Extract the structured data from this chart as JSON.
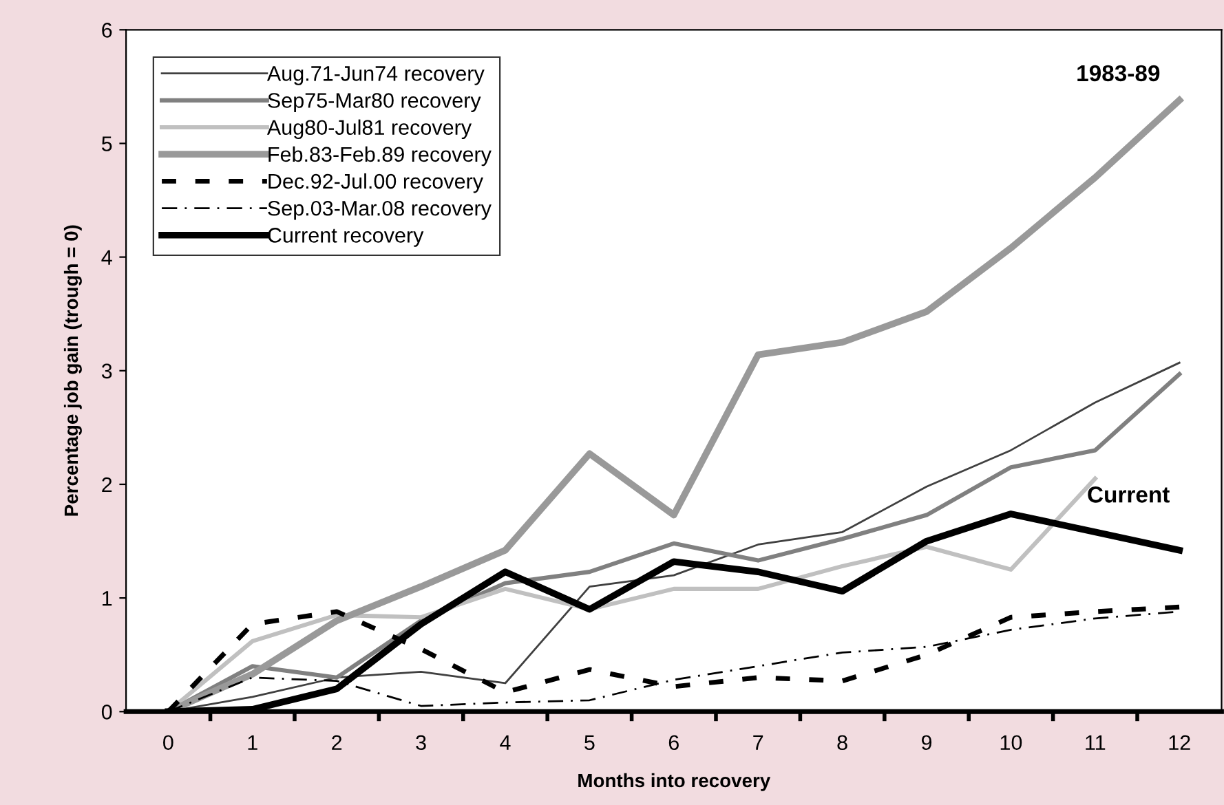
{
  "chart_data": {
    "type": "line",
    "xlabel": "Months into recovery",
    "ylabel": "Percentage job gain (trough = 0)",
    "categories": [
      "0",
      "1",
      "2",
      "3",
      "4",
      "5",
      "6",
      "7",
      "8",
      "9",
      "10",
      "11",
      "12"
    ],
    "ylim": [
      0,
      6
    ],
    "yticks": [
      0,
      1,
      2,
      3,
      4,
      5,
      6
    ],
    "grid": false,
    "legend": "top left",
    "series": [
      {
        "name": "Aug.71-Jun74 recovery",
        "color": "#404040",
        "line_style": "solid",
        "values": [
          0,
          0.13,
          0.3,
          0.35,
          0.25,
          1.1,
          1.2,
          1.47,
          1.58,
          1.98,
          2.3,
          2.72,
          3.07
        ]
      },
      {
        "name": "Sep75-Mar80 recovery",
        "color": "#808080",
        "line_style": "solid",
        "values": [
          0,
          0.4,
          0.3,
          0.8,
          1.13,
          1.23,
          1.48,
          1.33,
          1.52,
          1.73,
          2.15,
          2.3,
          2.97
        ]
      },
      {
        "name": "Aug80-Jul81 recovery",
        "color": "#c0c0c0",
        "line_style": "solid",
        "values": [
          0,
          0.62,
          0.85,
          0.83,
          1.08,
          0.9,
          1.08,
          1.08,
          1.28,
          1.45,
          1.25,
          2.05,
          null
        ]
      },
      {
        "name": "Feb.83-Feb.89 recovery",
        "color": "#999999",
        "line_style": "solid",
        "values": [
          0,
          0.33,
          0.8,
          1.1,
          1.42,
          2.27,
          1.73,
          3.14,
          3.25,
          3.52,
          4.08,
          4.7,
          5.38
        ]
      },
      {
        "name": "Dec.92-Jul.00 recovery",
        "color": "#000000",
        "line_style": "dashed",
        "values": [
          0,
          0.77,
          0.88,
          0.55,
          0.17,
          0.37,
          0.22,
          0.3,
          0.27,
          0.5,
          0.83,
          0.88,
          0.92
        ]
      },
      {
        "name": "Sep.03-Mar.08 recovery",
        "color": "#000000",
        "line_style": "dashdot",
        "values": [
          0,
          0.3,
          0.27,
          0.05,
          0.08,
          0.1,
          0.28,
          0.4,
          0.52,
          0.57,
          0.72,
          0.82,
          0.88
        ]
      },
      {
        "name": "Current recovery",
        "color": "#000000",
        "line_style": "solid",
        "values": [
          0,
          0.02,
          0.2,
          0.77,
          1.23,
          0.9,
          1.32,
          1.23,
          1.06,
          1.5,
          1.74,
          1.58,
          1.42
        ]
      }
    ],
    "annotations": [
      {
        "text": "1983-89",
        "x": "12",
        "y": 5.38
      },
      {
        "text": "Current",
        "x": "12",
        "y": 1.42
      }
    ]
  }
}
